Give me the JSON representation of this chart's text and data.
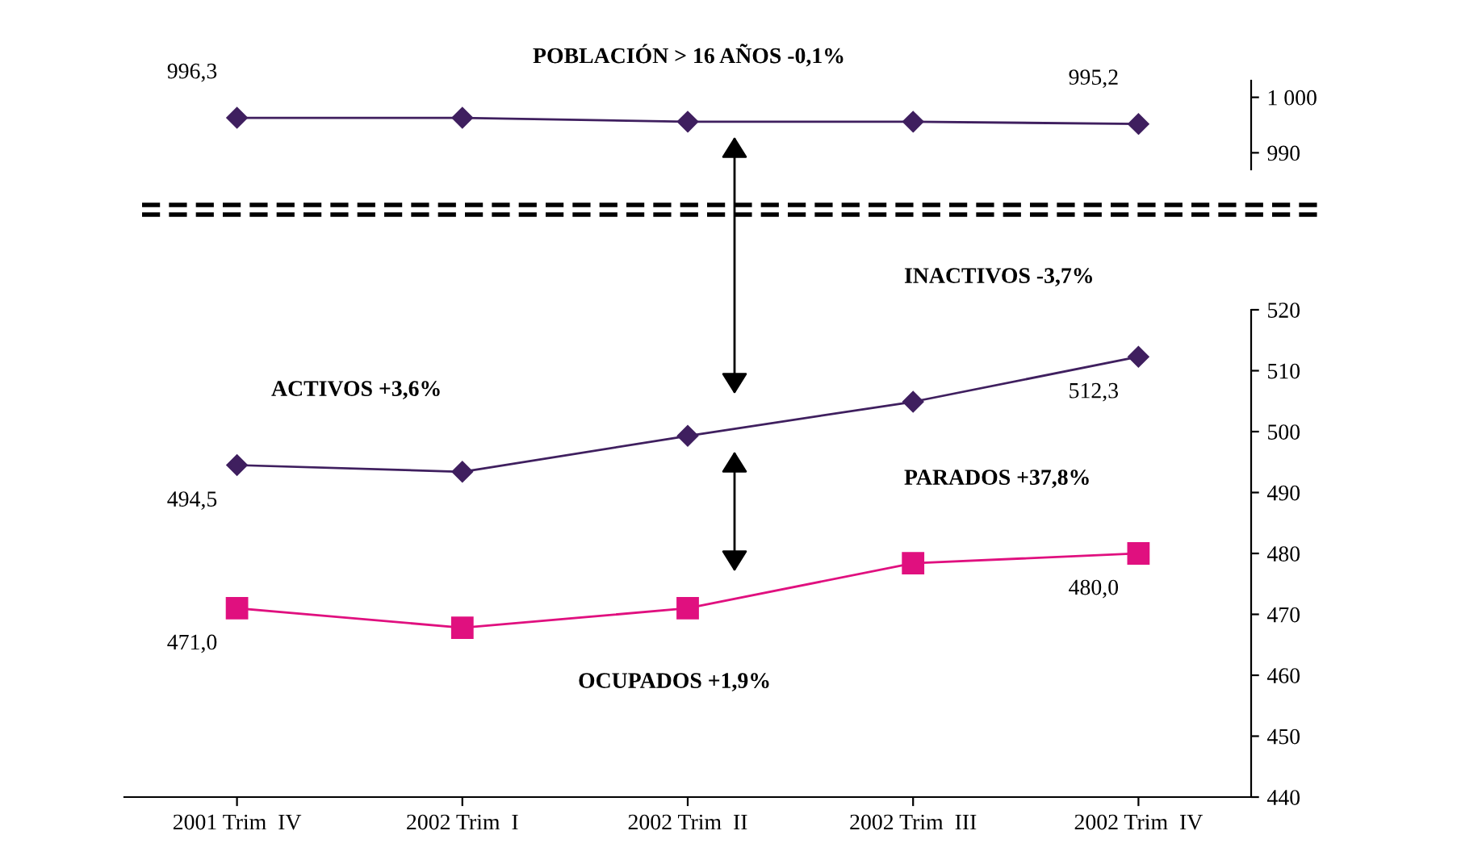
{
  "chart_data": [
    {
      "type": "line",
      "categories": [
        null,
        null,
        null,
        null,
        null
      ],
      "series": [
        {
          "color": "#3f1f5f",
          "values": [
            996.3,
            996.3,
            995.6,
            995.6,
            995.2
          ],
          "value_labels": [
            "996,3",
            null,
            null,
            null,
            "995,2"
          ],
          "marker": "diamond"
        }
      ],
      "ylim": [
        987,
        1003
      ],
      "yticks": [
        {
          "value": 1000,
          "label": "1 000"
        },
        990
      ],
      "tick_labels": "y",
      "grid": false,
      "legend": false,
      "annotations": [
        "POBLACIÓN > 16 AÑOS -0,1%"
      ]
    },
    {
      "type": "line",
      "categories": [
        "2001 Trim  IV",
        "2002 Trim  I",
        "2002 Trim  II",
        "2002 Trim  III",
        "2002 Trim  IV"
      ],
      "series": [
        {
          "color": "#3f1f5f",
          "values": [
            494.5,
            493.4,
            499.3,
            504.9,
            512.3
          ],
          "value_labels": [
            "494,5",
            null,
            null,
            null,
            "512,3"
          ],
          "marker": "diamond"
        },
        {
          "color": "#e0107f",
          "values": [
            471.0,
            467.8,
            471.0,
            478.4,
            480.0
          ],
          "value_labels": [
            "471,0",
            null,
            null,
            null,
            "480,0"
          ],
          "marker": "square"
        }
      ],
      "ylim": [
        440,
        520
      ],
      "yticks": [
        440,
        450,
        460,
        470,
        480,
        490,
        500,
        510,
        520
      ],
      "grid": false,
      "legend": false,
      "annotations": [
        "INACTIVOS -3,7%",
        "ACTIVOS +3,6%",
        "PARADOS +37,8%",
        "OCUPADOS +1,9%"
      ]
    }
  ]
}
